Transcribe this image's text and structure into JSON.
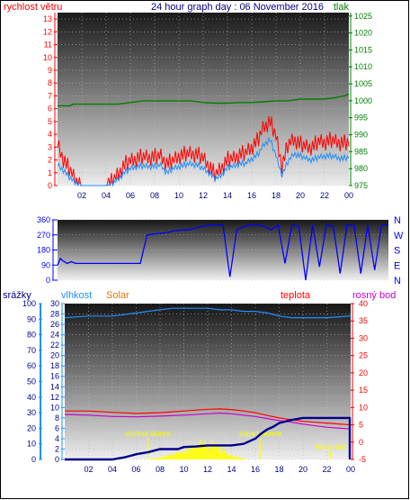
{
  "title": "24 hour graph day : 06 November 2016",
  "colors": {
    "wind": "#ff0000",
    "gust": "#1e90ff",
    "pressure": "#008000",
    "title": "#00008b",
    "direction": "#0000ff",
    "humidity": "#1e90ff",
    "solar": "#ffff00",
    "solar_label": "#e07b00",
    "temperature": "#ff0000",
    "dewpoint": "#cc00cc",
    "rain": "#00008b",
    "ann": "#ffff00"
  },
  "chart_data": [
    {
      "type": "line",
      "title": "24 hour graph day : 06 November 2016",
      "left_label": "rychlost větru",
      "right_label": "tlak",
      "x_ticks": [
        "02",
        "04",
        "06",
        "08",
        "10",
        "12",
        "14",
        "16",
        "18",
        "20",
        "22",
        "00"
      ],
      "y_left_ticks": [
        "0",
        "1",
        "2",
        "3",
        "4",
        "5",
        "6",
        "7",
        "8",
        "9",
        "10",
        "11",
        "12",
        "13"
      ],
      "y_left_range": [
        0,
        13.5
      ],
      "y_right_ticks": [
        "975",
        "980",
        "985",
        "990",
        "995",
        "1000",
        "1005",
        "1010",
        "1015",
        "1020",
        "1025"
      ],
      "y_right_range": [
        975,
        1026
      ],
      "series": [
        {
          "name": "wind",
          "x": [
            0,
            0.5,
            1,
            1.5,
            2,
            2.5,
            3,
            3.5,
            4,
            4.5,
            5,
            5.5,
            6,
            6.5,
            7,
            7.5,
            8,
            8.5,
            9,
            9.5,
            10,
            10.5,
            11,
            11.5,
            12,
            12.5,
            13,
            13.5,
            14,
            14.5,
            15,
            15.5,
            16,
            16.5,
            17,
            17.5,
            18,
            18.5,
            19,
            19.5,
            20,
            20.5,
            21,
            21.5,
            22,
            22.5,
            23,
            23.5,
            24
          ],
          "values": [
            3.2,
            2,
            1.2,
            0.4,
            0,
            0,
            0,
            0,
            0,
            0.3,
            0.9,
            1.6,
            1.9,
            2.1,
            2.2,
            2.2,
            2.2,
            2.3,
            1.7,
            1.9,
            2.3,
            2.4,
            2.5,
            2.4,
            2.1,
            1.5,
            0.8,
            1.4,
            2,
            2.1,
            2.4,
            2.5,
            3,
            3.5,
            4.6,
            5,
            3.8,
            1.5,
            3.2,
            3.6,
            3.2,
            3,
            3,
            3.4,
            3.4,
            3.5,
            3.4,
            3.3,
            3.3
          ]
        },
        {
          "name": "gust",
          "x": [
            0,
            0.5,
            1,
            1.5,
            2,
            2.5,
            3,
            3.5,
            4,
            4.5,
            5,
            5.5,
            6,
            6.5,
            7,
            7.5,
            8,
            8.5,
            9,
            9.5,
            10,
            10.5,
            11,
            11.5,
            12,
            12.5,
            13,
            13.5,
            14,
            14.5,
            15,
            15.5,
            16,
            16.5,
            17,
            17.5,
            18,
            18.5,
            19,
            19.5,
            20,
            20.5,
            21,
            21.5,
            22,
            22.5,
            23,
            23.5,
            24
          ],
          "values": [
            1.6,
            1.2,
            0.6,
            0.2,
            0,
            0,
            0,
            0,
            0,
            0.1,
            0.5,
            1,
            1.3,
            1.5,
            1.5,
            1.5,
            1.5,
            1.6,
            1,
            1.3,
            1.5,
            1.6,
            1.7,
            1.6,
            1.3,
            1,
            0.5,
            0.8,
            1.4,
            1.5,
            1.7,
            1.7,
            2.1,
            2.4,
            3.2,
            3.6,
            2.3,
            0.8,
            1.9,
            2.5,
            2.3,
            2.1,
            2,
            2.2,
            2.3,
            2.3,
            2.2,
            2.1,
            2.2
          ]
        },
        {
          "name": "pressure",
          "x": [
            0,
            1,
            1.3,
            2,
            3,
            4,
            5,
            6,
            7,
            8,
            9,
            10,
            11,
            12,
            13,
            14,
            15,
            16,
            17,
            18,
            19,
            20,
            21,
            22,
            23,
            23.7,
            24
          ],
          "values": [
            998.5,
            998.5,
            999,
            999,
            999,
            999,
            999,
            999.5,
            1000,
            1000,
            1000,
            1000,
            1000,
            999.5,
            999.3,
            999.3,
            999.5,
            999.5,
            999.7,
            1000,
            1000,
            1000.5,
            1000.5,
            1000.5,
            1001,
            1001.5,
            1002
          ]
        }
      ]
    },
    {
      "type": "line",
      "y_ticks": [
        "0",
        "90",
        "180",
        "270",
        "360"
      ],
      "y_range": [
        0,
        360
      ],
      "right_labels": [
        "N",
        "W",
        "S",
        "E",
        "N"
      ],
      "series": [
        {
          "name": "direction",
          "x": [
            0,
            0.2,
            0.4,
            0.7,
            1,
            1.3,
            1.6,
            2,
            2.5,
            3,
            3.5,
            4,
            4.5,
            5,
            5.5,
            6,
            6.5,
            7,
            7.5,
            8,
            8.5,
            9,
            9.5,
            10,
            10.5,
            11,
            11.5,
            12,
            12.5,
            13,
            13.5,
            14,
            14.5,
            15,
            15.5,
            16,
            16.5,
            17,
            17.5,
            18,
            18.5,
            19,
            19.5,
            20,
            20.5,
            21,
            21.5,
            22,
            22.5,
            23,
            23.5,
            24
          ],
          "values": [
            90,
            130,
            115,
            100,
            110,
            100,
            100,
            100,
            100,
            100,
            100,
            100,
            100,
            100,
            100,
            100,
            270,
            275,
            280,
            285,
            295,
            300,
            300,
            310,
            320,
            330,
            330,
            330,
            20,
            300,
            320,
            330,
            330,
            320,
            300,
            330,
            100,
            330,
            320,
            0,
            330,
            80,
            330,
            320,
            40,
            330,
            330,
            40,
            330,
            60,
            330,
            330
          ]
        }
      ]
    },
    {
      "type": "line",
      "labels": {
        "rain": "srážky",
        "humidity": "vlhkost",
        "solar": "Solar",
        "temperature": "teplota",
        "dewpoint": "rosný bod"
      },
      "y_rain_ticks": [
        "0",
        "10",
        "20",
        "30",
        "40",
        "50",
        "60",
        "70",
        "80",
        "90",
        "100"
      ],
      "y_humidity_ticks": [
        "0",
        "2",
        "4",
        "6",
        "8",
        "10",
        "12",
        "14",
        "16",
        "18",
        "20",
        "22",
        "24",
        "26",
        "28",
        "30"
      ],
      "y_temp_ticks": [
        "-5",
        "0",
        "5",
        "10",
        "15",
        "20",
        "25",
        "30",
        "35",
        "40"
      ],
      "y_temp_range": [
        -5,
        40
      ],
      "annotations": [
        "východ slunce",
        "západ slunce",
        "Moon Rise",
        "Moon Set"
      ],
      "annotation_hours": [
        7,
        16.4,
        12,
        22.3
      ],
      "series": [
        {
          "name": "humidity",
          "x": [
            0,
            2,
            4,
            5,
            6,
            7,
            8,
            9,
            10,
            11,
            12,
            13,
            14,
            15,
            16,
            17,
            18,
            19,
            20,
            22,
            24
          ],
          "values": [
            91,
            92,
            92,
            93,
            94,
            95,
            96,
            97,
            97,
            97,
            97,
            96,
            96,
            95,
            95,
            94,
            92,
            91,
            91,
            91,
            92
          ]
        },
        {
          "name": "temperature",
          "x": [
            0,
            2,
            4,
            6,
            8,
            10,
            12,
            13,
            14,
            15,
            16,
            17,
            18,
            19,
            20,
            22,
            24
          ],
          "values": [
            9,
            9,
            8.6,
            8.3,
            8.5,
            9,
            9.5,
            9.6,
            9.4,
            9,
            8.5,
            7.7,
            7,
            6.5,
            6,
            5.5,
            5
          ]
        },
        {
          "name": "dewpoint",
          "x": [
            0,
            2,
            4,
            6,
            8,
            10,
            12,
            13,
            14,
            15,
            16,
            17,
            18,
            19,
            20,
            22,
            24
          ],
          "values": [
            8,
            7.8,
            7.4,
            7.3,
            7.5,
            7.8,
            8.2,
            8.4,
            8.2,
            7.8,
            7.4,
            6.8,
            6.2,
            5.8,
            5.2,
            4.3,
            3.8
          ]
        },
        {
          "name": "rain",
          "x": [
            0,
            4,
            4.5,
            5,
            5.5,
            6,
            6.5,
            7,
            7.5,
            8,
            9.5,
            10,
            11,
            11.5,
            12,
            13,
            14,
            15,
            16,
            16.5,
            17,
            17.5,
            18,
            19,
            20,
            24
          ],
          "values": [
            0,
            0,
            0.2,
            0.4,
            0.7,
            1,
            1.2,
            1.4,
            1.7,
            2,
            2,
            2.4,
            2.5,
            2.6,
            2.7,
            2.7,
            2.7,
            3,
            4,
            5,
            5.8,
            6.3,
            7,
            7.6,
            8,
            8
          ]
        },
        {
          "name": "solar",
          "x": [
            0,
            6.8,
            7.5,
            8,
            8.5,
            9,
            9.5,
            10,
            10.5,
            11,
            11.5,
            12,
            12.5,
            13,
            13.5,
            14,
            14.5,
            15,
            16.5,
            24
          ],
          "values": [
            0,
            0,
            0.2,
            0.5,
            0.8,
            1.2,
            1.5,
            2,
            2.5,
            3.2,
            4,
            3,
            3.6,
            2.5,
            1.5,
            1,
            0.6,
            0.2,
            0,
            0
          ]
        }
      ]
    }
  ]
}
